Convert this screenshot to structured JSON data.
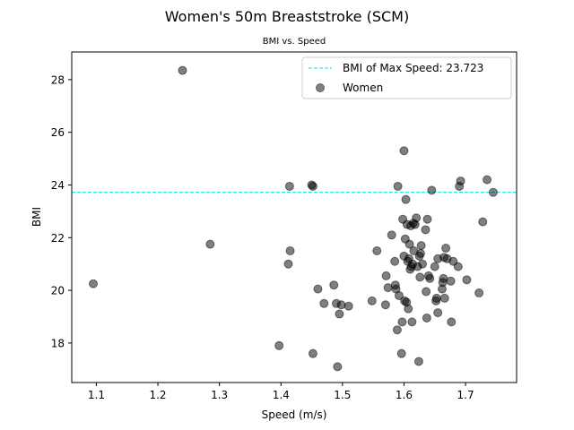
{
  "chart_data": {
    "type": "scatter",
    "title": "Women's 50m Breaststroke (SCM)",
    "subtitle": "BMI vs. Speed",
    "xlabel": "Speed (m/s)",
    "ylabel": "BMI",
    "xlim": [
      1.06,
      1.783
    ],
    "ylim": [
      16.5,
      29.05
    ],
    "xticks": [
      {
        "value": 1.1,
        "label": "1.1"
      },
      {
        "value": 1.2,
        "label": "1.2"
      },
      {
        "value": 1.3,
        "label": "1.3"
      },
      {
        "value": 1.4,
        "label": "1.4"
      },
      {
        "value": 1.5,
        "label": "1.5"
      },
      {
        "value": 1.6,
        "label": "1.6"
      },
      {
        "value": 1.7,
        "label": "1.7"
      }
    ],
    "yticks": [
      {
        "value": 18,
        "label": "18"
      },
      {
        "value": 20,
        "label": "20"
      },
      {
        "value": 22,
        "label": "22"
      },
      {
        "value": 24,
        "label": "24"
      },
      {
        "value": 26,
        "label": "26"
      },
      {
        "value": 28,
        "label": "28"
      }
    ],
    "reference_line": {
      "y": 23.723,
      "label": "BMI of Max Speed: 23.723",
      "color": "#00e5ee"
    },
    "series": [
      {
        "name": "Women",
        "color": "#000000",
        "opacity": 0.5,
        "points": [
          [
            1.095,
            20.25
          ],
          [
            1.24,
            28.35
          ],
          [
            1.285,
            21.75
          ],
          [
            1.412,
            21.0
          ],
          [
            1.414,
            23.95
          ],
          [
            1.415,
            21.5
          ],
          [
            1.397,
            17.9
          ],
          [
            1.45,
            24.0
          ],
          [
            1.452,
            23.95
          ],
          [
            1.452,
            17.6
          ],
          [
            1.46,
            20.05
          ],
          [
            1.47,
            19.5
          ],
          [
            1.486,
            20.2
          ],
          [
            1.49,
            19.5
          ],
          [
            1.492,
            17.1
          ],
          [
            1.495,
            19.1
          ],
          [
            1.498,
            19.45
          ],
          [
            1.51,
            19.4
          ],
          [
            1.548,
            19.6
          ],
          [
            1.556,
            21.5
          ],
          [
            1.57,
            19.45
          ],
          [
            1.571,
            20.55
          ],
          [
            1.574,
            20.1
          ],
          [
            1.58,
            22.1
          ],
          [
            1.585,
            21.1
          ],
          [
            1.586,
            20.2
          ],
          [
            1.587,
            20.05
          ],
          [
            1.589,
            18.5
          ],
          [
            1.59,
            23.95
          ],
          [
            1.592,
            19.8
          ],
          [
            1.596,
            17.6
          ],
          [
            1.597,
            18.8
          ],
          [
            1.598,
            22.7
          ],
          [
            1.6,
            25.3
          ],
          [
            1.6,
            21.3
          ],
          [
            1.601,
            19.6
          ],
          [
            1.602,
            21.95
          ],
          [
            1.603,
            23.45
          ],
          [
            1.604,
            19.55
          ],
          [
            1.605,
            22.5
          ],
          [
            1.606,
            21.1
          ],
          [
            1.607,
            19.3
          ],
          [
            1.608,
            21.2
          ],
          [
            1.609,
            21.75
          ],
          [
            1.61,
            20.8
          ],
          [
            1.611,
            22.45
          ],
          [
            1.612,
            20.9
          ],
          [
            1.613,
            18.8
          ],
          [
            1.614,
            21.0
          ],
          [
            1.615,
            22.55
          ],
          [
            1.616,
            21.5
          ],
          [
            1.618,
            22.5
          ],
          [
            1.62,
            22.75
          ],
          [
            1.622,
            20.9
          ],
          [
            1.624,
            17.3
          ],
          [
            1.625,
            21.3
          ],
          [
            1.626,
            20.5
          ],
          [
            1.627,
            21.4
          ],
          [
            1.628,
            21.7
          ],
          [
            1.63,
            21.0
          ],
          [
            1.635,
            22.3
          ],
          [
            1.636,
            19.95
          ],
          [
            1.637,
            18.95
          ],
          [
            1.638,
            22.7
          ],
          [
            1.64,
            20.55
          ],
          [
            1.642,
            20.45
          ],
          [
            1.645,
            23.8
          ],
          [
            1.65,
            20.9
          ],
          [
            1.652,
            19.6
          ],
          [
            1.653,
            19.7
          ],
          [
            1.655,
            19.15
          ],
          [
            1.655,
            21.2
          ],
          [
            1.662,
            20.05
          ],
          [
            1.663,
            20.3
          ],
          [
            1.664,
            20.45
          ],
          [
            1.665,
            21.25
          ],
          [
            1.666,
            19.7
          ],
          [
            1.668,
            21.6
          ],
          [
            1.67,
            21.2
          ],
          [
            1.676,
            20.35
          ],
          [
            1.677,
            18.8
          ],
          [
            1.68,
            21.1
          ],
          [
            1.688,
            20.9
          ],
          [
            1.69,
            23.95
          ],
          [
            1.692,
            24.15
          ],
          [
            1.702,
            20.4
          ],
          [
            1.722,
            19.9
          ],
          [
            1.728,
            22.6
          ],
          [
            1.735,
            24.2
          ],
          [
            1.745,
            23.72
          ]
        ]
      }
    ]
  }
}
